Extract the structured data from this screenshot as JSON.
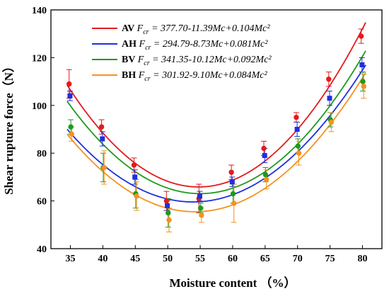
{
  "chart_data": {
    "type": "scatter",
    "xlabel": "Moisture content （%）",
    "ylabel": "Shear rupture force（N）",
    "xlim": [
      32,
      83
    ],
    "ylim": [
      40,
      140
    ],
    "x_ticks": [
      35,
      40,
      45,
      50,
      55,
      60,
      65,
      70,
      75,
      80
    ],
    "y_ticks": [
      40,
      60,
      80,
      100,
      120,
      140
    ],
    "grid": false,
    "legend_position": "top-center",
    "fit": "quadratic",
    "series": [
      {
        "name": "AV",
        "equation": "377.70-11.39Mc+0.104Mc²",
        "color": "#e41a1c",
        "marker": "circle",
        "coefficients": [
          377.7,
          -11.39,
          0.104
        ],
        "x": [
          35,
          40,
          45,
          50,
          55,
          60,
          65,
          70,
          75,
          80
        ],
        "y": [
          109,
          91,
          75,
          60,
          61,
          72,
          82,
          95,
          111,
          129
        ],
        "err": [
          6,
          3,
          3,
          4,
          6,
          3,
          3,
          2,
          3,
          3
        ]
      },
      {
        "name": "AH",
        "equation": "294.79-8.73Mc+0.081Mc²",
        "color": "#1f2fe0",
        "marker": "square",
        "coefficients": [
          294.79,
          -8.73,
          0.081
        ],
        "x": [
          35,
          40,
          45,
          50,
          55,
          60,
          65,
          70,
          75,
          80
        ],
        "y": [
          104,
          86,
          70,
          58,
          62,
          68,
          79,
          90,
          103,
          117
        ],
        "err": [
          2,
          3,
          3,
          2,
          2,
          2,
          3,
          3,
          3,
          3
        ]
      },
      {
        "name": "BV",
        "equation": "341.35-10.12Mc+0.092Mc²",
        "color": "#1e9a1e",
        "marker": "circle",
        "coefficients": [
          341.35,
          -10.12,
          0.092
        ],
        "x": [
          35,
          40,
          45,
          50,
          55,
          60,
          65,
          70,
          75,
          80
        ],
        "y": [
          91,
          74,
          63,
          55,
          57,
          63,
          71,
          83,
          94,
          110
        ],
        "err": [
          3,
          6,
          6,
          6,
          2,
          4,
          3,
          3,
          3,
          4
        ]
      },
      {
        "name": "BH",
        "equation": "301.92-9.10Mc+0.084Mc²",
        "color": "#f5921e",
        "marker": "circle",
        "coefficients": [
          301.92,
          -9.1,
          0.084
        ],
        "x": [
          35,
          40,
          45,
          50,
          55,
          60,
          65,
          70,
          75,
          80
        ],
        "y": [
          88,
          74,
          62,
          52,
          54,
          59,
          69,
          80,
          93,
          108
        ],
        "err": [
          3,
          7,
          6,
          5,
          3,
          8,
          4,
          5,
          4,
          5
        ]
      }
    ]
  },
  "legend_lhs": "F",
  "legend_lhs_sub": "cr"
}
